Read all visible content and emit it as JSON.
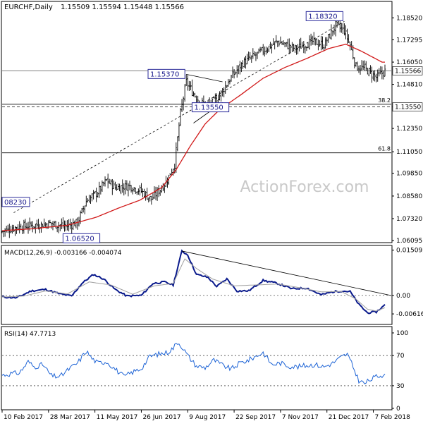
{
  "header": {
    "symbol": "EURCHF,Daily",
    "ohlc": "1.15509 1.15594 1.15448 1.15566"
  },
  "watermark": "ActionForex.com",
  "colors": {
    "candles": "#000000",
    "sma": "#d11919",
    "trend": "#000000",
    "macd": "#0a1a8c",
    "signal": "#a0a0a0",
    "rsi": "#1e64d6",
    "label_border": "#2b2b9a",
    "current_price_bg": "#ffffff"
  },
  "chart_data": [
    {
      "type": "candlestick",
      "panel": "price",
      "title": "EURCHF,Daily",
      "ylim": [
        1.0606,
        1.192
      ],
      "yticks": [
        "1.18520",
        "1.17295",
        "1.16050",
        "1.14810",
        "1.13550",
        "1.12350",
        "1.11050",
        "1.09850",
        "1.08580",
        "1.07320",
        "1.06095"
      ],
      "yticks_values": [
        1.1852,
        1.17295,
        1.1605,
        1.1481,
        1.1355,
        1.1235,
        1.1105,
        1.0985,
        1.0858,
        1.0732,
        1.06095
      ],
      "current_price": "1.15566",
      "close_path": [
        [
          0,
          1.066
        ],
        [
          10,
          1.0685
        ],
        [
          22,
          1.0695
        ],
        [
          33,
          1.0705
        ],
        [
          44,
          1.069
        ],
        [
          52,
          1.071
        ],
        [
          58,
          1.083
        ],
        [
          66,
          1.088
        ],
        [
          72,
          1.0945
        ],
        [
          78,
          1.0905
        ],
        [
          88,
          1.0915
        ],
        [
          96,
          1.0885
        ],
        [
          103,
          1.084
        ],
        [
          113,
          1.0935
        ],
        [
          119,
          1.1035
        ],
        [
          123,
          1.132
        ],
        [
          127,
          1.1495
        ],
        [
          131,
          1.144
        ],
        [
          137,
          1.138
        ],
        [
          143,
          1.136
        ],
        [
          150,
          1.142
        ],
        [
          158,
          1.152
        ],
        [
          166,
          1.16
        ],
        [
          178,
          1.166
        ],
        [
          190,
          1.172
        ],
        [
          202,
          1.168
        ],
        [
          214,
          1.172
        ],
        [
          222,
          1.17
        ],
        [
          230,
          1.181
        ],
        [
          236,
          1.178
        ],
        [
          240,
          1.17
        ],
        [
          244,
          1.158
        ],
        [
          250,
          1.157
        ],
        [
          258,
          1.152
        ],
        [
          264,
          1.1555
        ]
      ],
      "sma_path": [
        [
          0,
          1.0665
        ],
        [
          20,
          1.0675
        ],
        [
          45,
          1.0695
        ],
        [
          65,
          1.074
        ],
        [
          80,
          1.079
        ],
        [
          95,
          1.0835
        ],
        [
          110,
          1.0905
        ],
        [
          120,
          1.1005
        ],
        [
          130,
          1.114
        ],
        [
          140,
          1.126
        ],
        [
          150,
          1.134
        ],
        [
          165,
          1.1425
        ],
        [
          180,
          1.1515
        ],
        [
          195,
          1.1575
        ],
        [
          210,
          1.1625
        ],
        [
          225,
          1.168
        ],
        [
          237,
          1.1705
        ],
        [
          248,
          1.1665
        ],
        [
          262,
          1.1605
        ]
      ],
      "levels": [
        {
          "value": 1.1355,
          "label": "1.13550",
          "style": "dashed"
        },
        {
          "value": 1.137,
          "label": "38.2",
          "style": "solid"
        },
        {
          "value": 1.1099,
          "label": "61.8",
          "style": "solid"
        },
        {
          "value": 1.15566,
          "label": "",
          "style": "thin"
        }
      ],
      "annotations": [
        {
          "text": "1.18320",
          "x": 236,
          "y": 1.1832
        },
        {
          "text": "1.15370",
          "x": 127,
          "y": 1.1537
        },
        {
          "text": "1.13550",
          "x": 131,
          "y": 1.1355
        },
        {
          "text": "08230",
          "x": 0,
          "y": 1.0823
        },
        {
          "text": "1.06520",
          "x": 42,
          "y": 1.0652
        }
      ],
      "trendlines": [
        {
          "from": [
            8,
            1.0765
          ],
          "to": [
            236,
            1.1832
          ],
          "style": "dashed"
        },
        {
          "from": [
            127,
            1.1537
          ],
          "to": [
            152,
            1.1495
          ],
          "style": "solid"
        },
        {
          "from": [
            132,
            1.1265
          ],
          "to": [
            152,
            1.138
          ],
          "style": "solid"
        }
      ]
    },
    {
      "type": "line",
      "panel": "macd",
      "title": "MACD(12,26,9) -0.003166 -0.004074",
      "ylim": [
        -0.0092,
        0.0162
      ],
      "yticks": [
        "0.015092",
        "0.00",
        "-0.006163"
      ],
      "yticks_values": [
        0.015092,
        0.0,
        -0.006163
      ],
      "series": [
        {
          "role": "macd",
          "values": [
            [
              0,
              -0.0005
            ],
            [
              10,
              -0.0008
            ],
            [
              20,
              0.0015
            ],
            [
              30,
              0.002
            ],
            [
              40,
              0.0005
            ],
            [
              48,
              -0.0002
            ],
            [
              55,
              0.004
            ],
            [
              63,
              0.007
            ],
            [
              70,
              0.0055
            ],
            [
              78,
              0.002
            ],
            [
              86,
              -0.0002
            ],
            [
              96,
              0.0
            ],
            [
              104,
              0.004
            ],
            [
              112,
              0.0045
            ],
            [
              118,
              0.0035
            ],
            [
              124,
              0.0148
            ],
            [
              128,
              0.0135
            ],
            [
              134,
              0.007
            ],
            [
              142,
              0.006
            ],
            [
              148,
              0.003
            ],
            [
              155,
              0.0055
            ],
            [
              162,
              0.0015
            ],
            [
              170,
              0.0015
            ],
            [
              180,
              0.005
            ],
            [
              190,
              0.004
            ],
            [
              200,
              0.0022
            ],
            [
              210,
              0.0025
            ],
            [
              220,
              0.0002
            ],
            [
              228,
              0.0012
            ],
            [
              234,
              0.0015
            ],
            [
              240,
              0.0013
            ],
            [
              246,
              -0.003
            ],
            [
              252,
              -0.0058
            ],
            [
              258,
              -0.0055
            ],
            [
              264,
              -0.0032
            ]
          ]
        },
        {
          "role": "signal",
          "values": [
            [
              0,
              -0.0005
            ],
            [
              15,
              -0.0002
            ],
            [
              30,
              0.0015
            ],
            [
              45,
              0.0005
            ],
            [
              60,
              0.0045
            ],
            [
              75,
              0.0035
            ],
            [
              90,
              0.0004
            ],
            [
              105,
              0.0032
            ],
            [
              118,
              0.004
            ],
            [
              126,
              0.0122
            ],
            [
              134,
              0.009
            ],
            [
              145,
              0.0055
            ],
            [
              160,
              0.0032
            ],
            [
              175,
              0.0035
            ],
            [
              190,
              0.0038
            ],
            [
              205,
              0.0026
            ],
            [
              220,
              0.0012
            ],
            [
              234,
              0.0013
            ],
            [
              244,
              -0.0012
            ],
            [
              252,
              -0.0046
            ],
            [
              258,
              -0.0052
            ],
            [
              264,
              -0.0041
            ]
          ]
        }
      ],
      "trendline": {
        "from": [
          124,
          0.0148
        ],
        "to": [
          264,
          0.0002
        ]
      }
    },
    {
      "type": "line",
      "panel": "rsi",
      "title": "RSI(14) 47.7713",
      "ylim": [
        0,
        100
      ],
      "yticks": [
        "100",
        "70",
        "30",
        "0"
      ],
      "yticks_values": [
        100,
        70,
        30,
        0
      ],
      "levels": [
        70,
        30
      ],
      "x_labels": [
        "10 Feb 2017",
        "28 Mar 2017",
        "11 May 2017",
        "26 Jun 2017",
        "9 Aug 2017",
        "22 Sep 2017",
        "7 Nov 2017",
        "21 Dec 2017",
        "7 Feb 2018"
      ],
      "x_label_index": [
        0,
        32,
        64,
        96,
        128,
        160,
        192,
        224,
        256
      ],
      "values": [
        [
          0,
          44
        ],
        [
          6,
          46
        ],
        [
          12,
          47
        ],
        [
          18,
          62
        ],
        [
          22,
          55
        ],
        [
          28,
          58
        ],
        [
          34,
          43
        ],
        [
          40,
          42
        ],
        [
          46,
          52
        ],
        [
          52,
          60
        ],
        [
          58,
          76
        ],
        [
          62,
          66
        ],
        [
          66,
          60
        ],
        [
          72,
          62
        ],
        [
          78,
          52
        ],
        [
          84,
          42
        ],
        [
          90,
          48
        ],
        [
          96,
          53
        ],
        [
          102,
          69
        ],
        [
          108,
          72
        ],
        [
          114,
          74
        ],
        [
          118,
          80
        ],
        [
          121,
          88
        ],
        [
          124,
          82
        ],
        [
          128,
          70
        ],
        [
          134,
          56
        ],
        [
          140,
          54
        ],
        [
          146,
          64
        ],
        [
          152,
          57
        ],
        [
          158,
          52
        ],
        [
          164,
          60
        ],
        [
          170,
          64
        ],
        [
          176,
          70
        ],
        [
          180,
          74
        ],
        [
          186,
          58
        ],
        [
          192,
          60
        ],
        [
          198,
          56
        ],
        [
          204,
          55
        ],
        [
          210,
          57
        ],
        [
          216,
          58
        ],
        [
          222,
          55
        ],
        [
          228,
          60
        ],
        [
          234,
          68
        ],
        [
          238,
          72
        ],
        [
          242,
          55
        ],
        [
          246,
          37
        ],
        [
          250,
          33
        ],
        [
          254,
          38
        ],
        [
          258,
          42
        ],
        [
          262,
          44
        ],
        [
          264,
          48
        ]
      ]
    }
  ]
}
